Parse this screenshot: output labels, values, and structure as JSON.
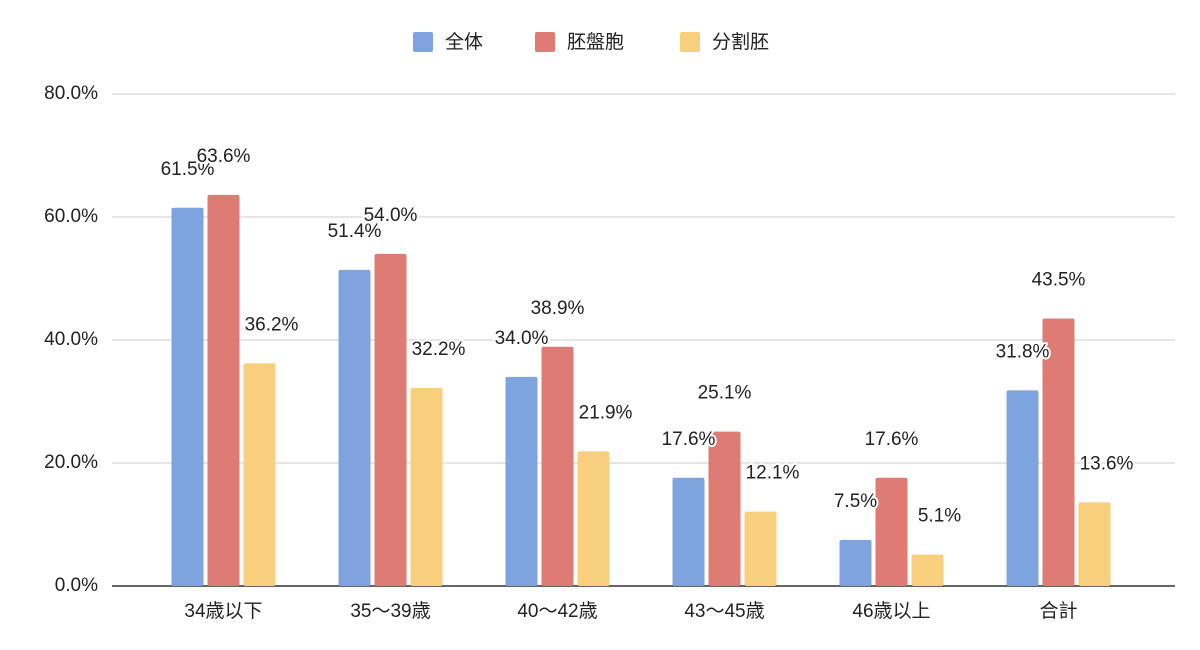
{
  "chart_data": {
    "type": "bar",
    "categories": [
      "34歳以下",
      "35〜39歳",
      "40〜42歳",
      "43〜45歳",
      "46歳以上",
      "合計"
    ],
    "series": [
      {
        "name": "全体",
        "color": "#7fa3de",
        "label_color": "#7b9ad6",
        "values": [
          61.5,
          51.4,
          34.0,
          17.6,
          7.5,
          31.8
        ],
        "value_labels": [
          "61.5%",
          "51.4%",
          "34.0%",
          "17.6%",
          "7.5%",
          "31.8%"
        ]
      },
      {
        "name": "胚盤胞",
        "color": "#dd7b74",
        "label_color": "#e06c5f",
        "values": [
          63.6,
          54.0,
          38.9,
          25.1,
          17.6,
          43.5
        ],
        "value_labels": [
          "63.6%",
          "54.0%",
          "38.9%",
          "25.1%",
          "17.6%",
          "43.5%"
        ]
      },
      {
        "name": "分割胚",
        "color": "#f8cf7c",
        "label_color": "#f0bd10",
        "values": [
          36.2,
          32.2,
          21.9,
          12.1,
          5.1,
          13.6
        ],
        "value_labels": [
          "36.2%",
          "32.2%",
          "21.9%",
          "12.1%",
          "5.1%",
          "13.6%"
        ]
      }
    ],
    "ylim": [
      0,
      80
    ],
    "yticks": [
      {
        "value": 0,
        "label": "0.0%"
      },
      {
        "value": 20,
        "label": "20.0%"
      },
      {
        "value": 40,
        "label": "40.0%"
      },
      {
        "value": 60,
        "label": "60.0%"
      },
      {
        "value": 80,
        "label": "80.0%"
      }
    ],
    "grid": true,
    "legend": "top"
  }
}
